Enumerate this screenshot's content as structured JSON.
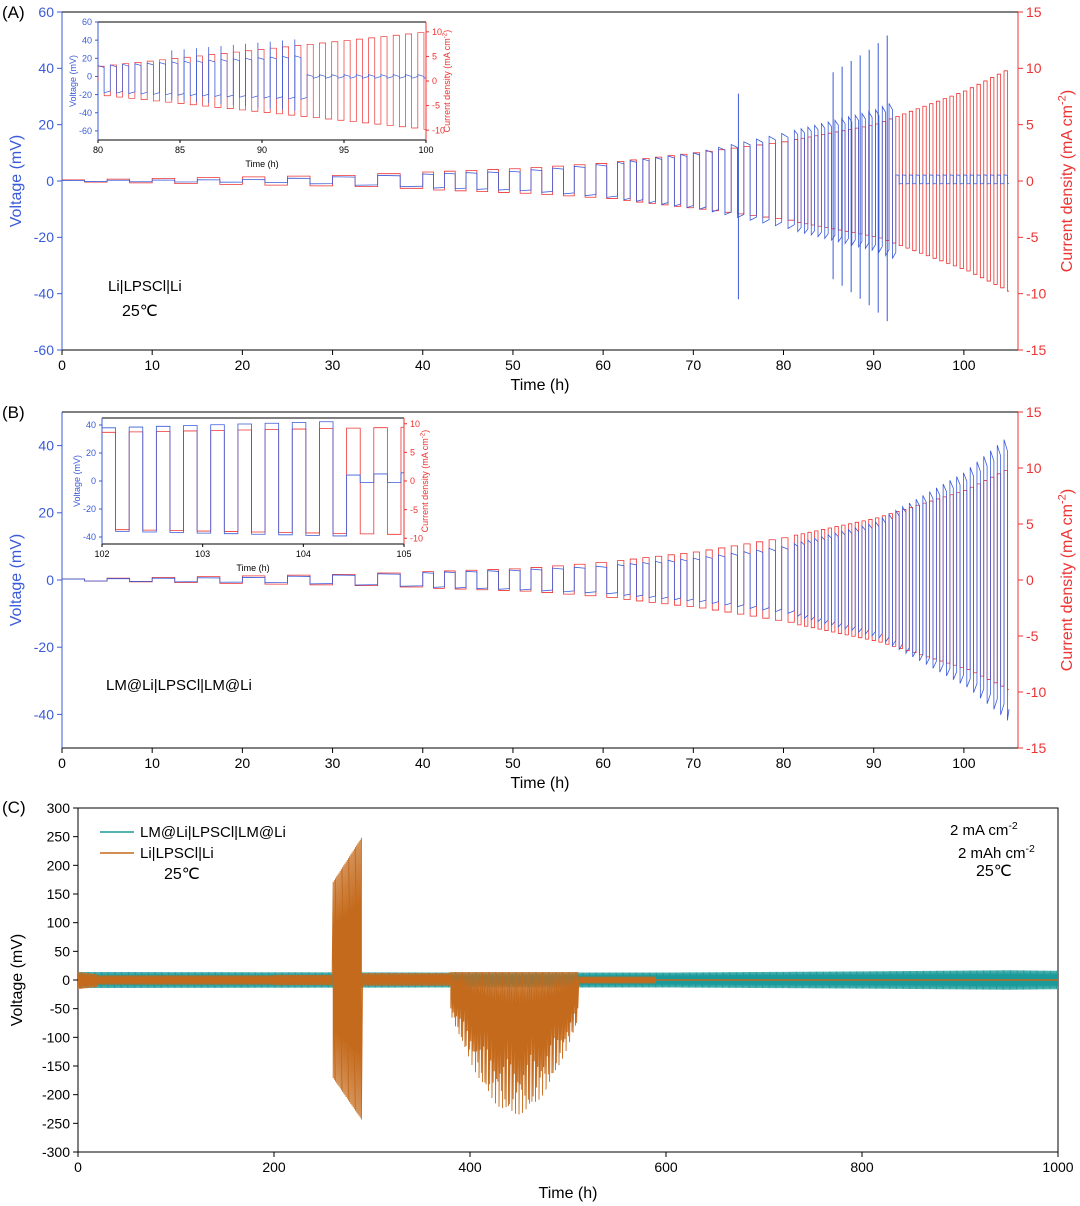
{
  "panel_labels": {
    "a": "(A)",
    "b": "(B)",
    "c": "(C)"
  },
  "colors": {
    "voltage": "#3a5bd9",
    "current": "#ee3333",
    "lm": "#1a9a9a",
    "li": "#c46a1c",
    "axis": "#000000"
  },
  "chart_data": [
    {
      "id": "A",
      "type": "line",
      "xlabel": "Time (h)",
      "ylabel": "Voltage (mV)",
      "y2label": "Current density (mA cm",
      "y2label_sup": "-2",
      "y2label_tail": ")",
      "xlim": [
        0,
        106
      ],
      "ylim": [
        -60,
        60
      ],
      "y2lim": [
        -15,
        15
      ],
      "xticks": [
        "0",
        "10",
        "20",
        "30",
        "40",
        "50",
        "60",
        "70",
        "80",
        "90",
        "100"
      ],
      "yticks": [
        "-60",
        "-40",
        "-20",
        "0",
        "20",
        "40",
        "60"
      ],
      "y2ticks": [
        "-15",
        "-10",
        "-5",
        "0",
        "5",
        "10",
        "15"
      ],
      "annotation": [
        "Li|LPSCl|Li",
        "25℃"
      ],
      "series": [
        {
          "role": "voltage",
          "short_circuit_time": 92.3,
          "spike_times": [
            75,
            85.5,
            86.5,
            87.5,
            88.5,
            89.5,
            90.5,
            91.5
          ],
          "amplitude_at": [
            [
              0,
              0.2
            ],
            [
              20,
              0.5
            ],
            [
              30,
              1.5
            ],
            [
              40,
              2.5
            ],
            [
              50,
              3.5
            ],
            [
              60,
              6
            ],
            [
              70,
              10
            ],
            [
              80,
              17
            ],
            [
              90,
              25
            ],
            [
              92,
              28
            ]
          ]
        },
        {
          "role": "current",
          "current_at": [
            [
              0,
              0.1
            ],
            [
              30,
              0.5
            ],
            [
              50,
              1.1
            ],
            [
              60,
              1.6
            ],
            [
              70,
              2.5
            ],
            [
              80,
              3.5
            ],
            [
              90,
              5
            ],
            [
              100,
              8
            ],
            [
              105,
              10
            ]
          ]
        }
      ],
      "inset": {
        "xlabel": "Time (h)",
        "ylabel": "Voltage (mV)",
        "y2label": "Current density (mA cm",
        "y2label_sup": "-2",
        "y2label_tail": ")",
        "xlim": [
          80,
          100
        ],
        "ylim": [
          -70,
          60
        ],
        "y2lim": [
          -12,
          12
        ],
        "xticks": [
          "80",
          "85",
          "90",
          "95",
          "100"
        ],
        "yticks": [
          "-60",
          "-40",
          "-20",
          "0",
          "20",
          "40",
          "60"
        ],
        "y2ticks": [
          "-10",
          "-5",
          "0",
          "5",
          "10"
        ]
      }
    },
    {
      "id": "B",
      "type": "line",
      "xlabel": "Time (h)",
      "ylabel": "Voltage (mV)",
      "y2label": "Current density (mA cm",
      "y2label_sup": "-2",
      "y2label_tail": ")",
      "xlim": [
        0,
        106
      ],
      "ylim": [
        -50,
        50
      ],
      "y2lim": [
        -15,
        15
      ],
      "xticks": [
        "0",
        "10",
        "20",
        "30",
        "40",
        "50",
        "60",
        "70",
        "80",
        "90",
        "100"
      ],
      "yticks": [
        "-40",
        "-20",
        "0",
        "20",
        "40"
      ],
      "y2ticks": [
        "-15",
        "-10",
        "-5",
        "0",
        "5",
        "10",
        "15"
      ],
      "annotation": [
        "LM@Li|LPSCl|LM@Li"
      ],
      "series": [
        {
          "role": "voltage",
          "amplitude_at": [
            [
              0,
              0.3
            ],
            [
              20,
              0.8
            ],
            [
              30,
              1.5
            ],
            [
              40,
              2.2
            ],
            [
              50,
              3
            ],
            [
              60,
              4.2
            ],
            [
              70,
              6.5
            ],
            [
              80,
              10
            ],
            [
              90,
              17
            ],
            [
              100,
              32
            ],
            [
              105,
              43
            ]
          ]
        },
        {
          "role": "current",
          "current_at": [
            [
              0,
              0.1
            ],
            [
              30,
              0.5
            ],
            [
              50,
              1
            ],
            [
              60,
              1.6
            ],
            [
              70,
              2.5
            ],
            [
              80,
              3.8
            ],
            [
              90,
              5.5
            ],
            [
              100,
              8
            ],
            [
              105,
              10
            ]
          ]
        }
      ],
      "inset": {
        "xlabel": "Time (h)",
        "ylabel": "Voltage (mV)",
        "y2label": "Current density (mA cm",
        "y2label_sup": "-2",
        "y2label_tail": ")",
        "xlim": [
          102,
          105
        ],
        "ylim": [
          -45,
          45
        ],
        "y2lim": [
          -11,
          11
        ],
        "xticks": [
          "102",
          "103",
          "104",
          "105"
        ],
        "yticks": [
          "-40",
          "-20",
          "0",
          "20",
          "40"
        ],
        "y2ticks": [
          "-10",
          "-5",
          "0",
          "5",
          "10"
        ]
      }
    },
    {
      "id": "C",
      "type": "line",
      "xlabel": "Time (h)",
      "ylabel": "Voltage (mV)",
      "xlim": [
        0,
        1000
      ],
      "ylim": [
        -300,
        300
      ],
      "xticks": [
        "0",
        "200",
        "400",
        "600",
        "800",
        "1000"
      ],
      "yticks": [
        "-300",
        "-250",
        "-200",
        "-150",
        "-100",
        "-50",
        "0",
        "50",
        "100",
        "150",
        "200",
        "250",
        "300"
      ],
      "legend": [
        "LM@Li|LPSCl|LM@Li",
        "Li|LPSCl|Li"
      ],
      "legend_note": "25℃",
      "conditions": {
        "line1": "2 mA cm",
        "line1_sup": "-2",
        "line2": "2 mAh cm",
        "line2_sup": "-2",
        "line3": "25℃"
      },
      "series": [
        {
          "name": "LM@Li|LPSCl|LM@Li",
          "role": "lm",
          "end_time": 1000,
          "amplitude_at": [
            [
              0,
              14
            ],
            [
              400,
              13
            ],
            [
              600,
              13
            ],
            [
              800,
              15
            ],
            [
              950,
              17
            ],
            [
              1000,
              16
            ]
          ]
        },
        {
          "name": "Li|LPSCl|Li",
          "role": "li",
          "end_time": 590,
          "spike_window": [
            260,
            290
          ],
          "spike_pos_max": 250,
          "spike_neg_min": -245,
          "decay_window": [
            380,
            510
          ],
          "decay_neg_min": -235
        }
      ]
    }
  ]
}
